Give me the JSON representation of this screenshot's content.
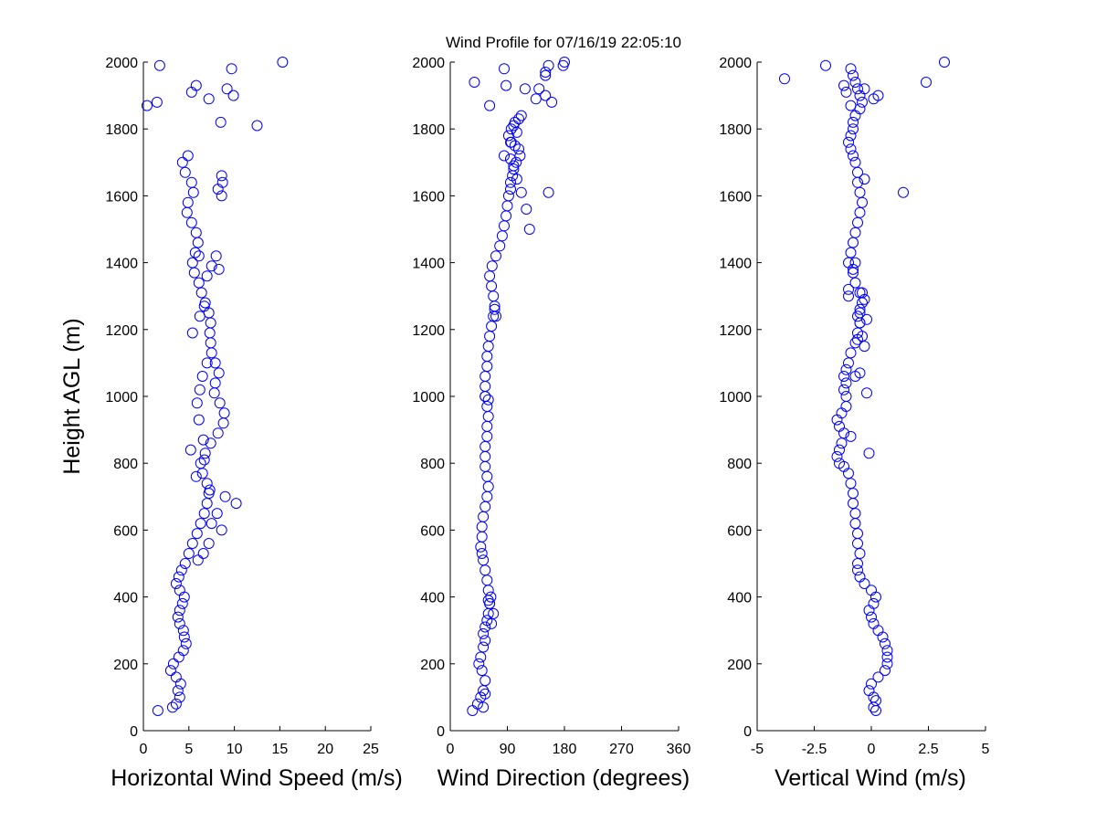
{
  "chart_data": [
    {
      "type": "scatter",
      "title": "Wind Profile for  07/16/19 22:05:10",
      "xlabel": "Horizontal Wind Speed (m/s)",
      "ylabel": "Height AGL (m)",
      "xlim": [
        0,
        25
      ],
      "ylim": [
        0,
        2000
      ],
      "xticks": [
        0,
        5,
        10,
        15,
        20,
        25
      ],
      "xticklabels": [
        "0",
        "5",
        "10",
        "15",
        "20",
        "25"
      ],
      "yticks": [
        0,
        200,
        400,
        600,
        800,
        1000,
        1200,
        1400,
        1600,
        1800,
        2000
      ],
      "yticklabels": [
        "0",
        "200",
        "400",
        "600",
        "800",
        "1000",
        "1200",
        "1400",
        "1600",
        "1800",
        "2000"
      ],
      "marker": "open-circle",
      "color": "#0000ff",
      "x": [
        1.6,
        3.2,
        3.6,
        4.0,
        3.8,
        4.1,
        3.6,
        3.0,
        3.3,
        3.9,
        4.4,
        4.7,
        4.5,
        4.4,
        4.0,
        3.8,
        4.0,
        4.3,
        4.5,
        4.0,
        3.6,
        3.9,
        4.2,
        4.6,
        5.0,
        5.4,
        5.9,
        6.3,
        6.7,
        7.0,
        7.2,
        7.0,
        6.5,
        6.3,
        6.8,
        7.4,
        8.2,
        8.8,
        8.9,
        8.4,
        7.8,
        7.9,
        8.3,
        7.9,
        7.5,
        7.4,
        7.3,
        7.4,
        7.2,
        6.8,
        6.4,
        6.1,
        5.6,
        5.4,
        5.7,
        6.0,
        5.8,
        5.3,
        4.8,
        4.9,
        5.5,
        5.3,
        4.6,
        4.3,
        4.9,
        5.4,
        6.2,
        6.7,
        7.0,
        7.5,
        8.0,
        7.0,
        6.5,
        6.2,
        5.9,
        6.1,
        6.6,
        5.2,
        6.7,
        5.8,
        7.3,
        9.0,
        10.2,
        8.1,
        7.5,
        8.6,
        7.2,
        6.6,
        6.0,
        8.3,
        6.1,
        8.6,
        8.2,
        8.7,
        8.6,
        12.5,
        8.5,
        0.4,
        1.5,
        7.2,
        9.9,
        9.2,
        5.8,
        5.3,
        1.8,
        9.7,
        15.3
      ],
      "y": [
        60,
        70,
        80,
        100,
        120,
        140,
        160,
        180,
        200,
        220,
        240,
        260,
        280,
        300,
        320,
        340,
        360,
        380,
        400,
        420,
        440,
        460,
        480,
        500,
        530,
        560,
        590,
        620,
        650,
        680,
        710,
        740,
        770,
        800,
        830,
        860,
        890,
        920,
        950,
        980,
        1010,
        1040,
        1070,
        1100,
        1130,
        1160,
        1190,
        1220,
        1250,
        1280,
        1310,
        1340,
        1370,
        1400,
        1430,
        1460,
        1490,
        1520,
        1550,
        1580,
        1610,
        1640,
        1670,
        1700,
        1720,
        1190,
        1240,
        1270,
        1360,
        1390,
        1420,
        1100,
        1060,
        1020,
        980,
        930,
        870,
        840,
        810,
        760,
        720,
        700,
        680,
        650,
        620,
        600,
        560,
        530,
        510,
        1380,
        1420,
        1600,
        1620,
        1640,
        1660,
        1810,
        1820,
        1870,
        1880,
        1890,
        1900,
        1920,
        1930,
        1910,
        1990,
        1980,
        2000
      ]
    },
    {
      "type": "scatter",
      "xlabel": "Wind Direction (degrees)",
      "ylabel": "",
      "xlim": [
        0,
        360
      ],
      "ylim": [
        0,
        2000
      ],
      "xticks": [
        0,
        90,
        180,
        270,
        360
      ],
      "xticklabels": [
        "0",
        "90",
        "180",
        "270",
        "360"
      ],
      "yticks": [
        0,
        200,
        400,
        600,
        800,
        1000,
        1200,
        1400,
        1600,
        1800,
        2000
      ],
      "yticklabels": [
        "0",
        "200",
        "400",
        "600",
        "800",
        "1000",
        "1200",
        "1400",
        "1600",
        "1800",
        "2000"
      ],
      "marker": "open-circle",
      "color": "#0000ff",
      "x": [
        35,
        43,
        48,
        52,
        55,
        50,
        45,
        48,
        52,
        55,
        52,
        55,
        58,
        60,
        62,
        64,
        60,
        58,
        55,
        52,
        50,
        48,
        50,
        50,
        52,
        55,
        58,
        60,
        58,
        55,
        55,
        55,
        58,
        58,
        60,
        58,
        55,
        55,
        55,
        58,
        58,
        60,
        62,
        65,
        68,
        70,
        68,
        65,
        62,
        66,
        72,
        78,
        82,
        85,
        88,
        90,
        92,
        95,
        95,
        98,
        100,
        104,
        110,
        108,
        102,
        95,
        92,
        96,
        102,
        108,
        112,
        105,
        100,
        96,
        70,
        72,
        55,
        60,
        65,
        68,
        62,
        60,
        38,
        62,
        88,
        85,
        95,
        100,
        105,
        112,
        120,
        125,
        155,
        160,
        135,
        140,
        118,
        55,
        52,
        150,
        150,
        178,
        180,
        85,
        150,
        155
      ],
      "y": [
        60,
        80,
        100,
        120,
        150,
        180,
        200,
        220,
        250,
        270,
        290,
        310,
        330,
        350,
        380,
        400,
        420,
        450,
        480,
        510,
        530,
        550,
        580,
        610,
        640,
        670,
        700,
        730,
        760,
        790,
        820,
        850,
        880,
        910,
        940,
        970,
        1000,
        1030,
        1060,
        1090,
        1120,
        1150,
        1180,
        1210,
        1240,
        1270,
        1300,
        1330,
        1360,
        1390,
        1420,
        1450,
        1480,
        1510,
        1540,
        1570,
        1600,
        1620,
        1640,
        1660,
        1680,
        1700,
        1720,
        1740,
        1750,
        1760,
        1780,
        1800,
        1820,
        1830,
        1840,
        1790,
        1810,
        1760,
        1260,
        1240,
        1000,
        990,
        320,
        350,
        380,
        390,
        1940,
        1870,
        1930,
        1720,
        1710,
        1690,
        1650,
        1610,
        1560,
        1500,
        1610,
        1880,
        1890,
        1920,
        1920,
        110,
        70,
        1900,
        1970,
        1990,
        2000,
        1980,
        1960,
        1990
      ]
    },
    {
      "type": "scatter",
      "xlabel": "Vertical Wind (m/s)",
      "ylabel": "",
      "xlim": [
        -5,
        5
      ],
      "ylim": [
        0,
        2000
      ],
      "xticks": [
        -5,
        -2.5,
        0,
        2.5,
        5
      ],
      "xticklabels": [
        "-5",
        "-2.5",
        "0",
        "2.5",
        "5"
      ],
      "yticks": [
        0,
        200,
        400,
        600,
        800,
        1000,
        1200,
        1400,
        1600,
        1800,
        2000
      ],
      "yticklabels": [
        "0",
        "200",
        "400",
        "600",
        "800",
        "1000",
        "1200",
        "1400",
        "1600",
        "1800",
        "2000"
      ],
      "marker": "open-circle",
      "color": "#0000ff",
      "x": [
        0.2,
        0.1,
        0.2,
        0.1,
        -0.1,
        0.0,
        0.3,
        0.6,
        0.7,
        0.7,
        0.7,
        0.6,
        0.5,
        0.3,
        0.1,
        0.0,
        -0.1,
        0.1,
        0.2,
        0.0,
        -0.3,
        -0.5,
        -0.6,
        -0.6,
        -0.5,
        -0.6,
        -0.6,
        -0.7,
        -0.7,
        -0.8,
        -0.8,
        -0.9,
        -1.0,
        -1.2,
        -1.4,
        -1.5,
        -1.4,
        -1.3,
        -1.2,
        -1.4,
        -1.5,
        -1.3,
        -1.1,
        -1.1,
        -1.2,
        -1.1,
        -1.2,
        -1.1,
        -1.0,
        -0.9,
        -0.7,
        -0.6,
        -0.5,
        -0.5,
        -0.4,
        -0.5,
        -0.7,
        -0.8,
        -1.0,
        -0.9,
        -0.8,
        -0.7,
        -0.6,
        -0.5,
        -0.4,
        -0.5,
        -0.6,
        -0.6,
        -0.7,
        -0.8,
        -0.9,
        -1.0,
        -0.9,
        -0.8,
        -0.8,
        -0.7,
        -0.5,
        -0.4,
        -0.5,
        -0.6,
        -0.7,
        -0.8,
        -0.9,
        -0.8,
        -0.7,
        -0.6,
        -0.5,
        -0.4,
        -0.6,
        -0.3,
        -0.2,
        -0.7,
        -0.5,
        -0.4,
        -1.0,
        -0.9,
        -0.1,
        -1.0,
        -0.3,
        -0.5,
        -0.2,
        1.4,
        0.3,
        0.1,
        -0.9,
        -1.1,
        -1.2,
        -0.3,
        -3.8,
        -2.0,
        2.4,
        3.2,
        -0.3
      ],
      "y": [
        60,
        70,
        90,
        100,
        120,
        140,
        160,
        180,
        200,
        220,
        240,
        260,
        280,
        300,
        320,
        340,
        360,
        380,
        400,
        420,
        440,
        460,
        480,
        500,
        530,
        560,
        590,
        620,
        650,
        680,
        710,
        740,
        770,
        790,
        800,
        820,
        840,
        860,
        890,
        910,
        930,
        950,
        970,
        1000,
        1020,
        1040,
        1060,
        1080,
        1100,
        1130,
        1160,
        1190,
        1220,
        1250,
        1280,
        1310,
        1340,
        1370,
        1400,
        1430,
        1460,
        1490,
        1520,
        1550,
        1580,
        1610,
        1640,
        1670,
        1700,
        1720,
        1740,
        1760,
        1780,
        1800,
        1820,
        1840,
        1860,
        1880,
        1900,
        1920,
        1940,
        1960,
        1980,
        1380,
        1400,
        1240,
        1220,
        1180,
        1170,
        1150,
        1010,
        1060,
        1070,
        1310,
        1320,
        880,
        830,
        1300,
        1290,
        1260,
        1230,
        1610,
        1900,
        1890,
        1870,
        1910,
        1930,
        1920,
        1950,
        1990,
        1940,
        2000,
        1650
      ]
    }
  ]
}
